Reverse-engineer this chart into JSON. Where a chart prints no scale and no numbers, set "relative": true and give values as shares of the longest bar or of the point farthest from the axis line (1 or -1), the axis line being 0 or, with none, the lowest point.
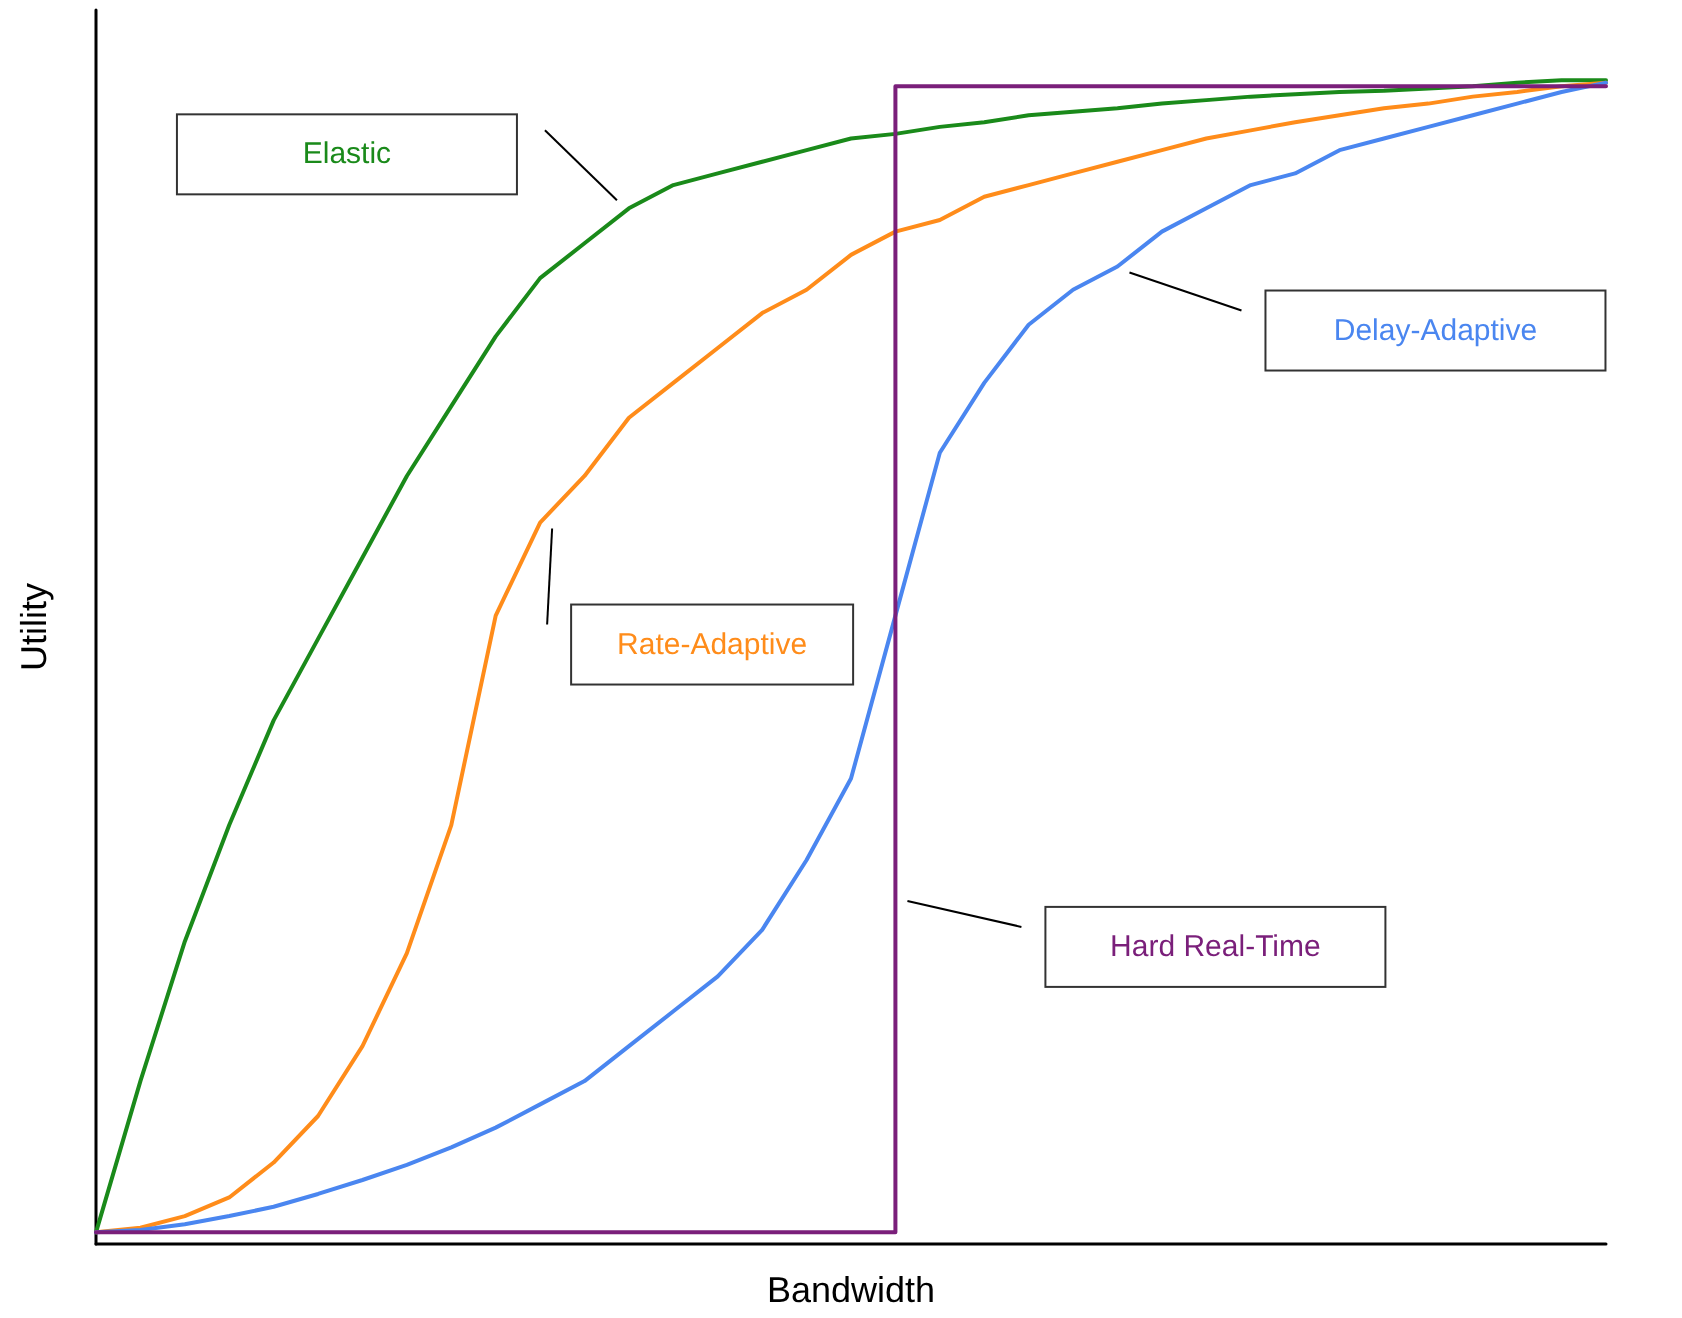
{
  "chart_data": {
    "type": "line",
    "relative": true,
    "xlabel": "Bandwidth",
    "ylabel": "Utility",
    "legend": false,
    "grid": false,
    "marker": "none",
    "line_style": "solid",
    "categories": [
      null,
      null,
      null,
      null,
      null,
      null,
      null,
      null,
      null,
      null,
      null,
      null,
      null,
      null,
      null,
      null,
      null,
      null,
      null,
      null,
      null,
      null,
      null,
      null,
      null,
      null,
      null,
      null,
      null,
      null,
      null,
      null,
      null,
      null,
      null
    ],
    "series": [
      {
        "name": "Elastic",
        "color": "#1a8a1a",
        "values": [
          0.01,
          0.14,
          0.26,
          0.36,
          0.45,
          0.52,
          0.59,
          0.66,
          0.72,
          0.78,
          0.83,
          0.86,
          0.89,
          0.91,
          0.92,
          0.93,
          0.94,
          0.95,
          0.954,
          0.96,
          0.964,
          0.97,
          0.973,
          0.976,
          0.98,
          0.983,
          0.986,
          0.988,
          0.99,
          0.991,
          0.993,
          0.995,
          0.998,
          1,
          1
        ]
      },
      {
        "name": "Rate-Adaptive",
        "color": "#ff8c1a",
        "values": [
          0.01,
          0.014,
          0.024,
          0.04,
          0.07,
          0.11,
          0.17,
          0.25,
          0.36,
          0.54,
          0.62,
          0.66,
          0.71,
          0.74,
          0.77,
          0.8,
          0.82,
          0.85,
          0.87,
          0.88,
          0.9,
          0.91,
          0.92,
          0.93,
          0.94,
          0.95,
          0.957,
          0.964,
          0.97,
          0.976,
          0.98,
          0.986,
          0.99,
          0.995,
          0.998
        ]
      },
      {
        "name": "Delay-Adaptive",
        "color": "#4a86f0",
        "values": [
          0.01,
          0.012,
          0.017,
          0.024,
          0.032,
          0.043,
          0.055,
          0.068,
          0.083,
          0.1,
          0.12,
          0.14,
          0.17,
          0.2,
          0.23,
          0.27,
          0.33,
          0.4,
          0.54,
          0.68,
          0.74,
          0.79,
          0.82,
          0.84,
          0.87,
          0.89,
          0.91,
          0.92,
          0.94,
          0.95,
          0.96,
          0.97,
          0.98,
          0.99,
          0.998
        ]
      },
      {
        "name": "Hard Real-Time",
        "type": "step",
        "color": "#7a1f7a",
        "values": [
          0.01,
          0.01,
          0.01,
          0.01,
          0.01,
          0.01,
          0.01,
          0.01,
          0.01,
          0.01,
          0.01,
          0.01,
          0.01,
          0.01,
          0.01,
          0.01,
          0.01,
          0.01,
          0.01,
          0.995,
          0.995,
          0.995,
          0.995,
          0.995,
          0.995,
          0.995,
          0.995,
          0.995,
          0.995,
          0.995,
          0.995,
          0.995,
          0.995,
          0.995,
          0.995
        ]
      }
    ]
  }
}
